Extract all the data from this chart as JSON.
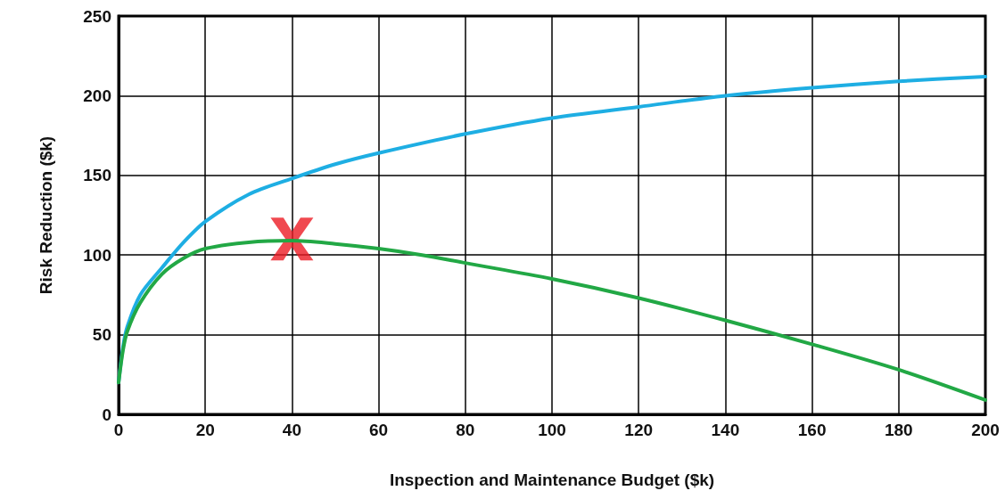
{
  "chart_data": {
    "type": "line",
    "xlabel": "Inspection and Maintenance Budget ($k)",
    "ylabel": "Risk Reduction ($k)",
    "xlim": [
      0,
      200
    ],
    "xticks": [
      0,
      20,
      40,
      60,
      80,
      100,
      120,
      140,
      160,
      180,
      200
    ],
    "ylim": [
      0,
      250
    ],
    "yticks": [
      0,
      50,
      100,
      150,
      200,
      250
    ],
    "grid": true,
    "line_style": "solid",
    "series": [
      {
        "color": "#1eaee3",
        "x": [
          0,
          1,
          2,
          5,
          10,
          15,
          20,
          30,
          40,
          50,
          60,
          80,
          100,
          120,
          140,
          160,
          180,
          200
        ],
        "values": [
          20,
          42,
          55,
          75,
          92,
          108,
          121,
          138,
          148,
          157,
          164,
          176,
          186,
          193,
          200,
          205,
          209,
          212
        ]
      },
      {
        "color": "#22a845",
        "x": [
          0,
          1,
          2,
          5,
          10,
          15,
          20,
          30,
          40,
          50,
          60,
          70,
          80,
          100,
          120,
          140,
          160,
          180,
          200
        ],
        "values": [
          20,
          40,
          52,
          70,
          88,
          98,
          104,
          108,
          109,
          107,
          104,
          100,
          95,
          85,
          73,
          59,
          44,
          28,
          9
        ]
      },
      {
        "type": "scatter",
        "marker": "cross",
        "color": "#ec1c24",
        "x": [
          40
        ],
        "values": [
          110
        ]
      }
    ]
  }
}
